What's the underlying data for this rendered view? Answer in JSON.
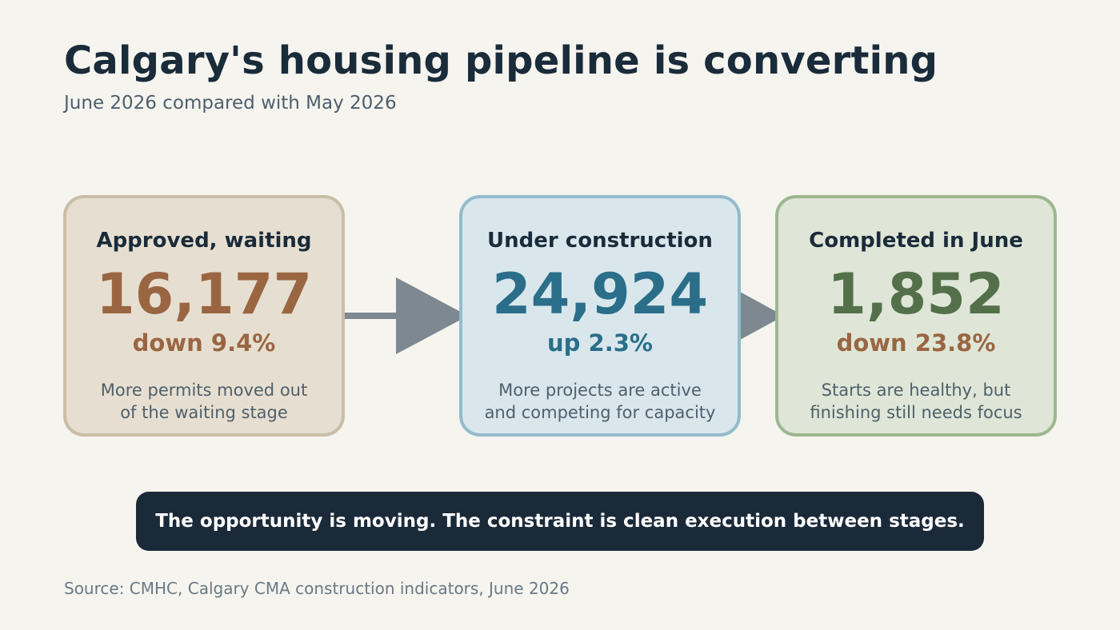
{
  "title": "Calgary's housing pipeline is converting",
  "subtitle": "June 2026 compared with May 2026",
  "stages": [
    {
      "heading": "Approved, waiting",
      "value": "16,177",
      "change": "down 9.4%",
      "note_lines": [
        "More permits moved out",
        "of the waiting stage"
      ],
      "value_color": "#9a6642",
      "change_color": "#9a6642"
    },
    {
      "heading": "Under construction",
      "value": "24,924",
      "change": "up 2.3%",
      "note_lines": [
        "More projects are active",
        "and competing for capacity"
      ],
      "value_color": "#2a6e8a",
      "change_color": "#2a6e8a"
    },
    {
      "heading": "Completed in June",
      "value": "1,852",
      "change": "down 23.8%",
      "note_lines": [
        "Starts are healthy, but",
        "finishing still needs focus"
      ],
      "value_color": "#53704a",
      "change_color": "#9a6642"
    }
  ],
  "arrow_color": "#7d8891",
  "banner": "The opportunity is moving. The constraint is clean execution between stages.",
  "source": "Source: CMHC, Calgary CMA construction indicators, June 2026"
}
